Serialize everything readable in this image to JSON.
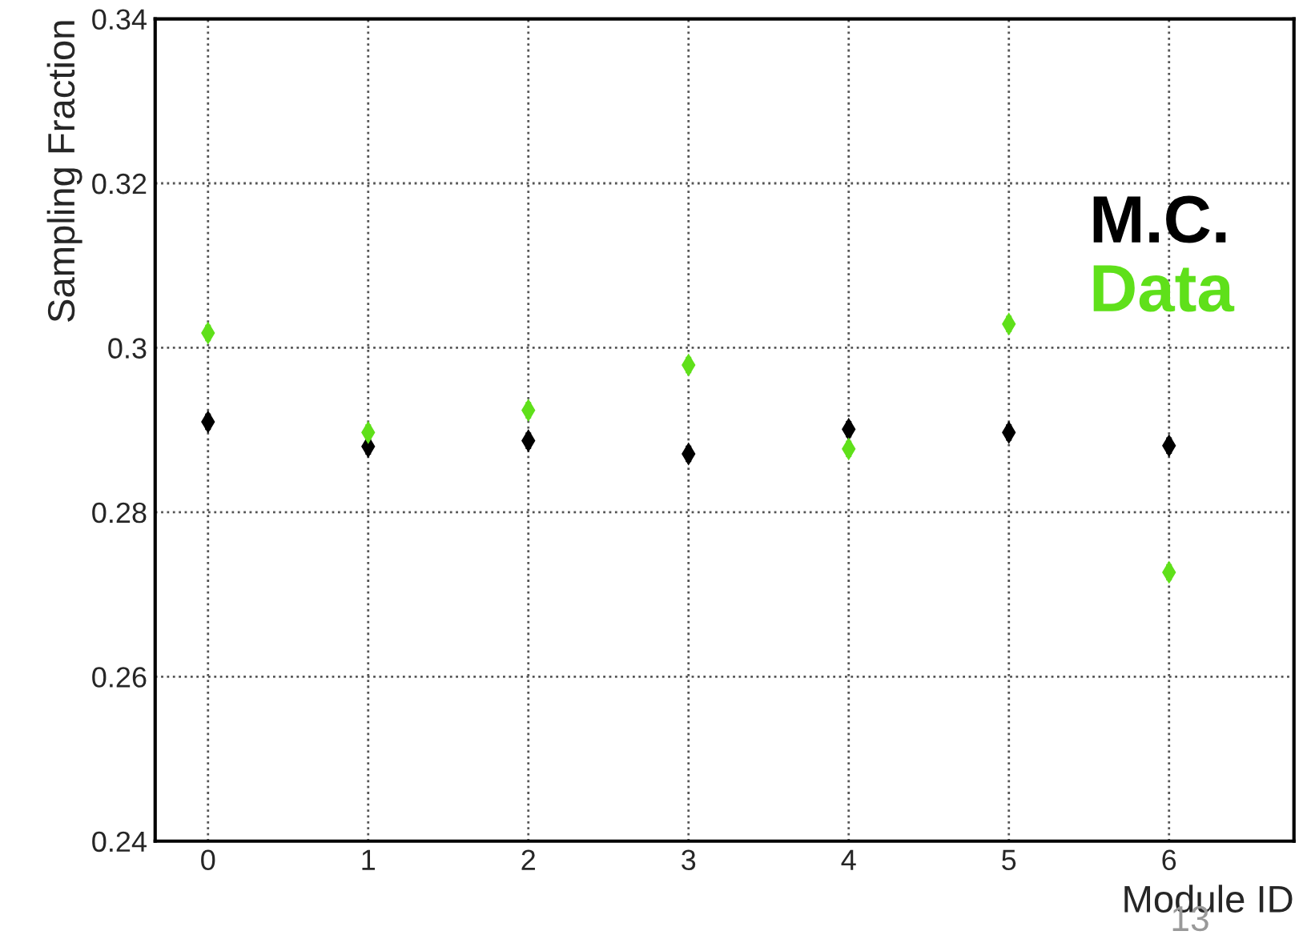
{
  "chart_data": {
    "type": "scatter",
    "xlabel": "Module ID",
    "ylabel": "Sampling Fraction",
    "x": [
      0,
      1,
      2,
      3,
      4,
      5,
      6
    ],
    "series": [
      {
        "name": "M.C.",
        "color": "#000000",
        "values": [
          0.291,
          0.288,
          0.2887,
          0.2871,
          0.2901,
          0.2897,
          0.2881
        ],
        "errors": [
          0.001,
          0.001,
          0.001,
          0.001,
          0.001,
          0.001,
          0.001
        ]
      },
      {
        "name": "Data",
        "color": "#5fe01a",
        "values": [
          0.3018,
          0.2897,
          0.2924,
          0.2979,
          0.2877,
          0.3029,
          0.2727
        ],
        "errors": [
          0.001,
          0.001,
          0.001,
          0.001,
          0.001,
          0.001,
          0.001
        ]
      }
    ],
    "xlim": [
      -0.33,
      6.78
    ],
    "xticks": [
      0,
      1,
      2,
      3,
      4,
      5,
      6
    ],
    "ylim": [
      0.24,
      0.34
    ],
    "yticks": [
      {
        "value": 0.24,
        "label": "0.24"
      },
      {
        "value": 0.26,
        "label": "0.26"
      },
      {
        "value": 0.28,
        "label": "0.28"
      },
      {
        "value": 0.3,
        "label": "0.3"
      },
      {
        "value": 0.32,
        "label": "0.32"
      },
      {
        "value": 0.34,
        "label": "0.34"
      }
    ],
    "grid": true,
    "legend": "right",
    "marker": "diamond",
    "annotations": [
      "13"
    ]
  }
}
